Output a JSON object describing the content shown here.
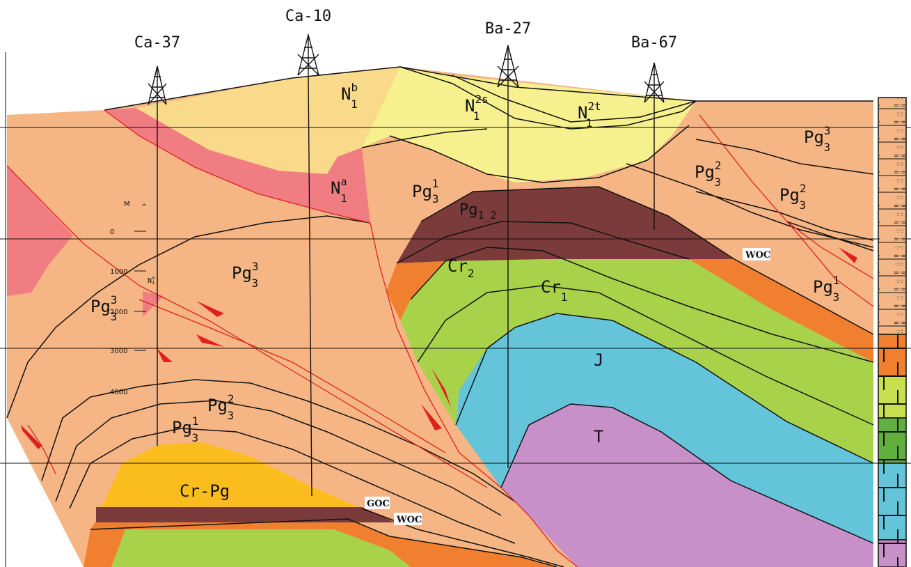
{
  "wells": [
    {
      "id": "ca37",
      "label": "Ca-37"
    },
    {
      "id": "ca10",
      "label": "Ca-10"
    },
    {
      "id": "ba27",
      "label": "Ba-27"
    },
    {
      "id": "ba67",
      "label": "Ba-67"
    }
  ],
  "scale": {
    "unit": "M",
    "arrow": "^",
    "ticks": [
      "0",
      "1000",
      "2000",
      "3000",
      "4000"
    ]
  },
  "units": {
    "n1b": {
      "base": "N",
      "sub": "1",
      "sup": "b"
    },
    "n1_2s": {
      "base": "N",
      "sub": "1",
      "sup": "2s"
    },
    "n1_2t": {
      "base": "N",
      "sub": "1",
      "sup": "2t"
    },
    "n1a": {
      "base": "N",
      "sub": "1",
      "sup": "a"
    },
    "n1a_small": {
      "base": "N",
      "sub": "1",
      "sup": "a"
    },
    "pg31_top": {
      "base": "Pg",
      "sub": "3",
      "sup": "1"
    },
    "pg1_2": {
      "base": "Pg",
      "sub": "1_2",
      "sup": ""
    },
    "pg33_right": {
      "base": "Pg",
      "sub": "3",
      "sup": "3"
    },
    "pg32_a": {
      "base": "Pg",
      "sub": "3",
      "sup": "2"
    },
    "pg32_b": {
      "base": "Pg",
      "sub": "3",
      "sup": "2"
    },
    "pg31_right": {
      "base": "Pg",
      "sub": "3",
      "sup": "1"
    },
    "pg33_center": {
      "base": "Pg",
      "sub": "3",
      "sup": "3"
    },
    "pg33_left": {
      "base": "Pg",
      "sub": "3",
      "sup": "3"
    },
    "pg32_low": {
      "base": "Pg",
      "sub": "3",
      "sup": "2"
    },
    "pg31_low": {
      "base": "Pg",
      "sub": "3",
      "sup": "1"
    },
    "cr2": {
      "base": "Cr",
      "sub": "2",
      "sup": ""
    },
    "cr1": {
      "base": "Cr",
      "sub": "1",
      "sup": ""
    },
    "j": {
      "base": "J",
      "sub": "",
      "sup": ""
    },
    "t": {
      "base": "T",
      "sub": "",
      "sup": ""
    },
    "crpg": {
      "base": "Cr-Pg",
      "sub": "",
      "sup": ""
    }
  },
  "contacts": {
    "woc_right": "WOC",
    "goc": "GOC",
    "woc_left": "WOC"
  },
  "colors": {
    "paleogene": "#f5b584",
    "neogene_b": "#f9d98a",
    "neogene_2": "#f7f08e",
    "neogene_a": "#ef7d82",
    "pg1_2": "#7b3b3a",
    "cr2": "#f08030",
    "cr1": "#a8d24a",
    "jurassic": "#64c4da",
    "triassic": "#c890c8",
    "crpg": "#fbbd1e",
    "fault": "#e02020"
  }
}
